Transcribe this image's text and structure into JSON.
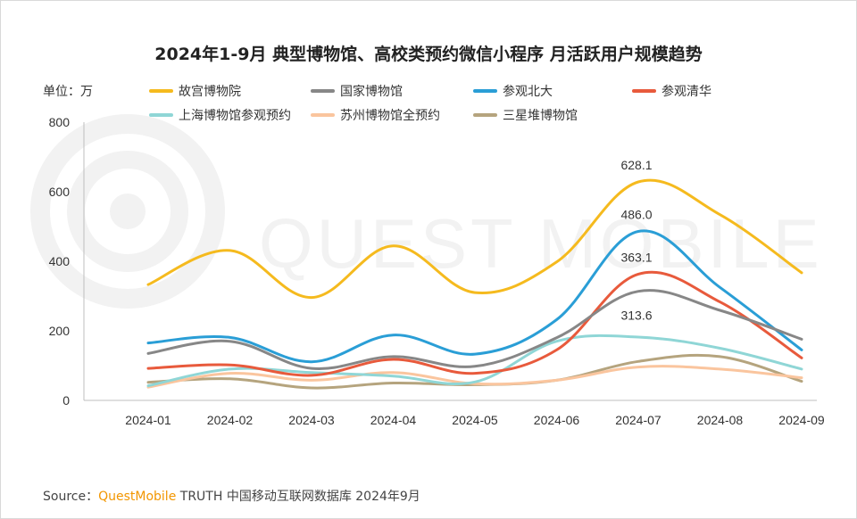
{
  "title": "2024年1-9月 典型博物馆、高校类预约微信小程序 月活跃用户规模趋势",
  "unit_label": "单位：万",
  "watermark_text": "QUEST MOBILE",
  "source": {
    "prefix": "Source：",
    "brand": "QuestMobile",
    "rest": " TRUTH 中国移动互联网数据库 2024年9月"
  },
  "chart_data": {
    "type": "line",
    "title": "2024年1-9月 典型博物馆、高校类预约微信小程序 月活跃用户规模趋势",
    "xlabel": "",
    "ylabel": "单位：万",
    "ylim": [
      0,
      800
    ],
    "yticks": [
      "0",
      "200",
      "400",
      "600",
      "800"
    ],
    "categories": [
      "2024-01",
      "2024-02",
      "2024-03",
      "2024-04",
      "2024-05",
      "2024-06",
      "2024-07",
      "2024-08",
      "2024-09"
    ],
    "grid": false,
    "legend": "top",
    "series": [
      {
        "name": "故宫博物院",
        "color": "#F5BA1E",
        "values": [
          333,
          431,
          296,
          444,
          310,
          398,
          628.1,
          534,
          367
        ]
      },
      {
        "name": "国家博物馆",
        "color": "#878787",
        "values": [
          135,
          170,
          92,
          126,
          98,
          180,
          313.6,
          259,
          176
        ]
      },
      {
        "name": "参观北大",
        "color": "#2A9ED6",
        "values": [
          165,
          181,
          111,
          188,
          133,
          232,
          486.0,
          325,
          145
        ]
      },
      {
        "name": "参观清华",
        "color": "#E85A3C",
        "values": [
          92,
          102,
          72,
          118,
          78,
          145,
          363.1,
          283,
          122
        ]
      },
      {
        "name": "上海博物馆参观预约",
        "color": "#8FD6D6",
        "values": [
          42,
          90,
          80,
          70,
          53,
          170,
          182,
          150,
          90
        ]
      },
      {
        "name": "苏州博物馆全预约",
        "color": "#FAC59E",
        "values": [
          38,
          78,
          58,
          80,
          48,
          58,
          96,
          90,
          65
        ]
      },
      {
        "name": "三星堆博物馆",
        "color": "#B5A47E",
        "values": [
          52,
          62,
          36,
          50,
          45,
          58,
          112,
          126,
          55
        ]
      }
    ],
    "data_labels": [
      {
        "series": "故宫博物院",
        "category": "2024-07",
        "text": "628.1"
      },
      {
        "series": "参观北大",
        "category": "2024-07",
        "text": "486.0"
      },
      {
        "series": "参观清华",
        "category": "2024-07",
        "text": "363.1"
      },
      {
        "series": "国家博物馆",
        "category": "2024-07",
        "text": "313.6"
      }
    ]
  }
}
